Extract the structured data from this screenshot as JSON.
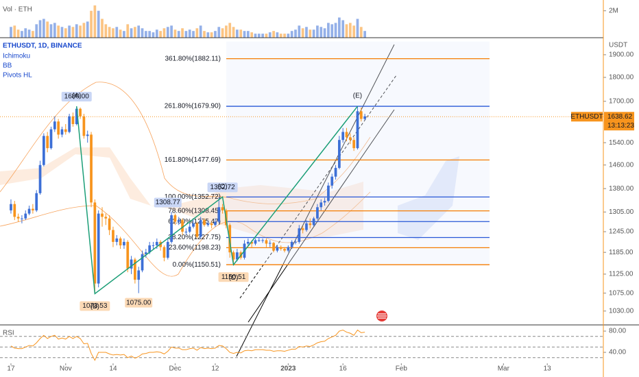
{
  "chart_data": {
    "type": "candlestick",
    "title": "ETHUSDT, 1D, BINANCE",
    "indicators": [
      "Ichimoku",
      "BB",
      "Pivots HL"
    ],
    "unit": "USDT",
    "log_scale": true,
    "up_color": "#3d6fd6",
    "down_color": "#f7941d",
    "xlim": [
      -3,
      162
    ],
    "xticks": [
      {
        "value": 0,
        "label": "17"
      },
      {
        "value": 15,
        "label": "Nov"
      },
      {
        "value": 28,
        "label": "14"
      },
      {
        "value": 45,
        "label": "Dec"
      },
      {
        "value": 56,
        "label": "12"
      },
      {
        "value": 76,
        "label": "2023"
      },
      {
        "value": 91,
        "label": "16"
      },
      {
        "value": 107,
        "label": "Feb"
      },
      {
        "value": 135,
        "label": "Mar"
      },
      {
        "value": 147,
        "label": "13"
      }
    ],
    "ylim": [
      1003,
      1979
    ],
    "yticks": [
      {
        "value": 1900,
        "label": "1900.00"
      },
      {
        "value": 1800,
        "label": "1800.00"
      },
      {
        "value": 1700,
        "label": "1700.00"
      },
      {
        "value": 1540,
        "label": "1540.00"
      },
      {
        "value": 1460,
        "label": "1460.00"
      },
      {
        "value": 1380,
        "label": "1380.00"
      },
      {
        "value": 1305,
        "label": "1305.00"
      },
      {
        "value": 1245,
        "label": "1245.00"
      },
      {
        "value": 1185,
        "label": "1185.00"
      },
      {
        "value": 1125,
        "label": "1125.00"
      },
      {
        "value": 1075,
        "label": "1075.00"
      },
      {
        "value": 1030,
        "label": "1030.00"
      }
    ],
    "open": [
      1310,
      1330,
      1290,
      1285,
      1285,
      1300,
      1315,
      1310,
      1365,
      1460,
      1565,
      1520,
      1590,
      1620,
      1570,
      1590,
      1580,
      1640,
      1610,
      1670,
      1640,
      1565,
      1570,
      1335,
      1100,
      1300,
      1290,
      1285,
      1250,
      1215,
      1225,
      1205,
      1215,
      1140,
      1165,
      1110,
      1135,
      1180,
      1185,
      1205,
      1205,
      1215,
      1200,
      1170,
      1215,
      1295,
      1275,
      1280,
      1245,
      1245,
      1260,
      1270,
      1230,
      1280,
      1265,
      1270,
      1265,
      1275,
      1320,
      1310,
      1265,
      1185,
      1165,
      1185,
      1170,
      1210,
      1215,
      1210,
      1220,
      1220,
      1220,
      1210,
      1212,
      1190,
      1200,
      1195,
      1190,
      1200,
      1215,
      1215,
      1255,
      1250,
      1270,
      1265,
      1285,
      1320,
      1335,
      1340,
      1390,
      1420,
      1450,
      1550,
      1580,
      1560,
      1550,
      1520,
      1660,
      1630
    ],
    "high": [
      1345,
      1340,
      1300,
      1295,
      1310,
      1325,
      1330,
      1375,
      1475,
      1575,
      1580,
      1600,
      1640,
      1630,
      1600,
      1610,
      1650,
      1655,
      1680,
      1675,
      1650,
      1585,
      1580,
      1345,
      1310,
      1320,
      1300,
      1295,
      1260,
      1235,
      1230,
      1225,
      1220,
      1175,
      1170,
      1145,
      1190,
      1195,
      1215,
      1215,
      1225,
      1220,
      1205,
      1225,
      1305,
      1300,
      1290,
      1285,
      1255,
      1270,
      1280,
      1275,
      1290,
      1285,
      1280,
      1275,
      1285,
      1352.72,
      1330,
      1315,
      1270,
      1190,
      1195,
      1190,
      1220,
      1225,
      1220,
      1225,
      1228,
      1225,
      1225,
      1220,
      1215,
      1205,
      1205,
      1200,
      1205,
      1220,
      1222,
      1265,
      1262,
      1280,
      1285,
      1290,
      1330,
      1345,
      1350,
      1400,
      1430,
      1460,
      1565,
      1595,
      1595,
      1575,
      1560,
      1679.9,
      1675,
      1650
    ],
    "low": [
      1300,
      1280,
      1275,
      1270,
      1280,
      1295,
      1300,
      1305,
      1360,
      1455,
      1505,
      1515,
      1580,
      1555,
      1560,
      1570,
      1575,
      1600,
      1605,
      1630,
      1555,
      1540,
      1320,
      1073.53,
      1090,
      1260,
      1265,
      1235,
      1200,
      1205,
      1195,
      1195,
      1130,
      1125,
      1100,
      1075,
      1130,
      1170,
      1180,
      1195,
      1195,
      1190,
      1160,
      1165,
      1210,
      1265,
      1265,
      1235,
      1235,
      1240,
      1255,
      1225,
      1225,
      1260,
      1260,
      1255,
      1260,
      1270,
      1300,
      1255,
      1170,
      1150.51,
      1160,
      1165,
      1165,
      1205,
      1200,
      1205,
      1215,
      1212,
      1200,
      1200,
      1185,
      1185,
      1190,
      1185,
      1185,
      1195,
      1208,
      1210,
      1240,
      1245,
      1255,
      1260,
      1280,
      1310,
      1325,
      1335,
      1380,
      1410,
      1445,
      1540,
      1545,
      1535,
      1510,
      1515,
      1620,
      1625
    ],
    "close": [
      1330,
      1290,
      1285,
      1285,
      1300,
      1315,
      1310,
      1365,
      1460,
      1565,
      1520,
      1590,
      1620,
      1570,
      1590,
      1580,
      1640,
      1610,
      1670,
      1640,
      1565,
      1570,
      1335,
      1100,
      1300,
      1290,
      1285,
      1250,
      1215,
      1225,
      1205,
      1215,
      1140,
      1165,
      1110,
      1135,
      1180,
      1185,
      1205,
      1205,
      1215,
      1200,
      1170,
      1215,
      1295,
      1275,
      1280,
      1245,
      1245,
      1260,
      1270,
      1230,
      1280,
      1265,
      1270,
      1265,
      1275,
      1320,
      1310,
      1265,
      1185,
      1165,
      1185,
      1170,
      1210,
      1215,
      1210,
      1220,
      1220,
      1220,
      1210,
      1212,
      1190,
      1200,
      1195,
      1190,
      1200,
      1215,
      1215,
      1255,
      1250,
      1270,
      1265,
      1285,
      1320,
      1335,
      1340,
      1390,
      1420,
      1450,
      1550,
      1580,
      1560,
      1550,
      1520,
      1660,
      1630,
      1640
    ],
    "last_price": 1638.62,
    "price_badge": "ETHUSDT",
    "countdown": "13:13:23",
    "fib_levels": [
      {
        "label": "361.80%(1882.11)",
        "value": 1882.11,
        "color": "#f57c00"
      },
      {
        "label": "261.80%(1679.90)",
        "value": 1679.9,
        "color": "#2757d6"
      },
      {
        "label": "161.80%(1477.69)",
        "value": 1477.69,
        "color": "#f57c00"
      },
      {
        "label": "100.00%(1352.72)",
        "value": 1352.72,
        "color": "#2757d6"
      },
      {
        "label": "78.60%(1308.45)",
        "value": 1308.45,
        "color": "#f57c00"
      },
      {
        "label": "61.80%(1275.47)",
        "value": 1275.47,
        "color": "#2757d6"
      },
      {
        "label": "38.20%(1227.75)",
        "value": 1227.75,
        "color": "#2757d6"
      },
      {
        "label": "23.60%(1198.23)",
        "value": 1198.23,
        "color": "#f57c00"
      },
      {
        "label": "0.00%(1150.51)",
        "value": 1150.51,
        "color": "#f57c00"
      }
    ],
    "pattern": [
      {
        "name": "(A)",
        "value": 1680,
        "label": "1680.00",
        "day": 18
      },
      {
        "name": "(B)",
        "value": 1073.53,
        "label": "1073.53",
        "day": 23
      },
      {
        "name": "(C)",
        "value": 1352.72,
        "label": "1352.72",
        "day": 58
      },
      {
        "name": "(D)",
        "value": 1150.51,
        "label": "1150.51",
        "day": 61
      },
      {
        "name": "(E)",
        "value": 1679.9,
        "day": 95
      }
    ],
    "pivots": [
      {
        "value": 1308.77,
        "label": "1308.77",
        "day": 43
      },
      {
        "value": 1075,
        "label": "1075.00",
        "day": 35
      }
    ],
    "volume": {
      "title": "Vol · ETH",
      "ylim": [
        0,
        2.8
      ],
      "yticks": [
        {
          "value": 2,
          "label": "2M"
        }
      ],
      "values": [
        0.8,
        0.9,
        0.6,
        0.5,
        0.7,
        0.6,
        0.5,
        1.0,
        1.3,
        1.4,
        1.2,
        1.0,
        1.1,
        0.9,
        0.8,
        0.7,
        0.9,
        0.8,
        1.0,
        0.9,
        1.1,
        1.2,
        2.0,
        2.4,
        2.0,
        1.4,
        1.0,
        0.8,
        0.7,
        0.8,
        0.6,
        0.5,
        1.0,
        0.7,
        0.8,
        0.9,
        0.7,
        0.5,
        0.5,
        0.4,
        0.6,
        0.5,
        0.7,
        0.8,
        0.9,
        0.6,
        0.5,
        0.7,
        0.5,
        0.6,
        0.5,
        0.7,
        0.9,
        0.5,
        0.4,
        0.4,
        0.5,
        0.8,
        0.7,
        0.9,
        1.1,
        0.8,
        0.6,
        0.6,
        0.5,
        0.5,
        0.4,
        0.3,
        0.3,
        0.3,
        0.3,
        0.4,
        0.5,
        0.4,
        0.3,
        0.3,
        0.3,
        0.5,
        0.6,
        0.9,
        0.7,
        0.8,
        0.6,
        0.6,
        0.9,
        0.8,
        0.7,
        1.1,
        1.0,
        1.1,
        1.5,
        1.3,
        1.0,
        1.1,
        0.9,
        1.4,
        0.8,
        0.5
      ]
    },
    "rsi": {
      "title": "RSI",
      "color": "#f7941d",
      "ylim": [
        22,
        86.5
      ],
      "yticks": [
        {
          "value": 80,
          "label": "80.00"
        },
        {
          "value": 40,
          "label": "40.00"
        }
      ],
      "levels": [
        70,
        50,
        30
      ],
      "values": [
        52,
        48,
        47,
        47,
        50,
        53,
        52,
        58,
        66,
        72,
        66,
        70,
        72,
        65,
        67,
        65,
        70,
        66,
        70,
        66,
        56,
        57,
        38,
        25,
        40,
        40,
        40,
        37,
        35,
        36,
        35,
        36,
        30,
        33,
        29,
        32,
        37,
        38,
        40,
        40,
        41,
        40,
        37,
        42,
        50,
        48,
        48,
        45,
        45,
        47,
        48,
        44,
        49,
        47,
        48,
        47,
        48,
        53,
        52,
        47,
        40,
        38,
        40,
        39,
        43,
        44,
        43,
        45,
        45,
        45,
        44,
        44,
        42,
        43,
        43,
        42,
        44,
        46,
        46,
        51,
        50,
        52,
        51,
        54,
        58,
        60,
        61,
        66,
        69,
        72,
        80,
        82,
        78,
        76,
        72,
        82,
        77,
        78
      ]
    }
  }
}
